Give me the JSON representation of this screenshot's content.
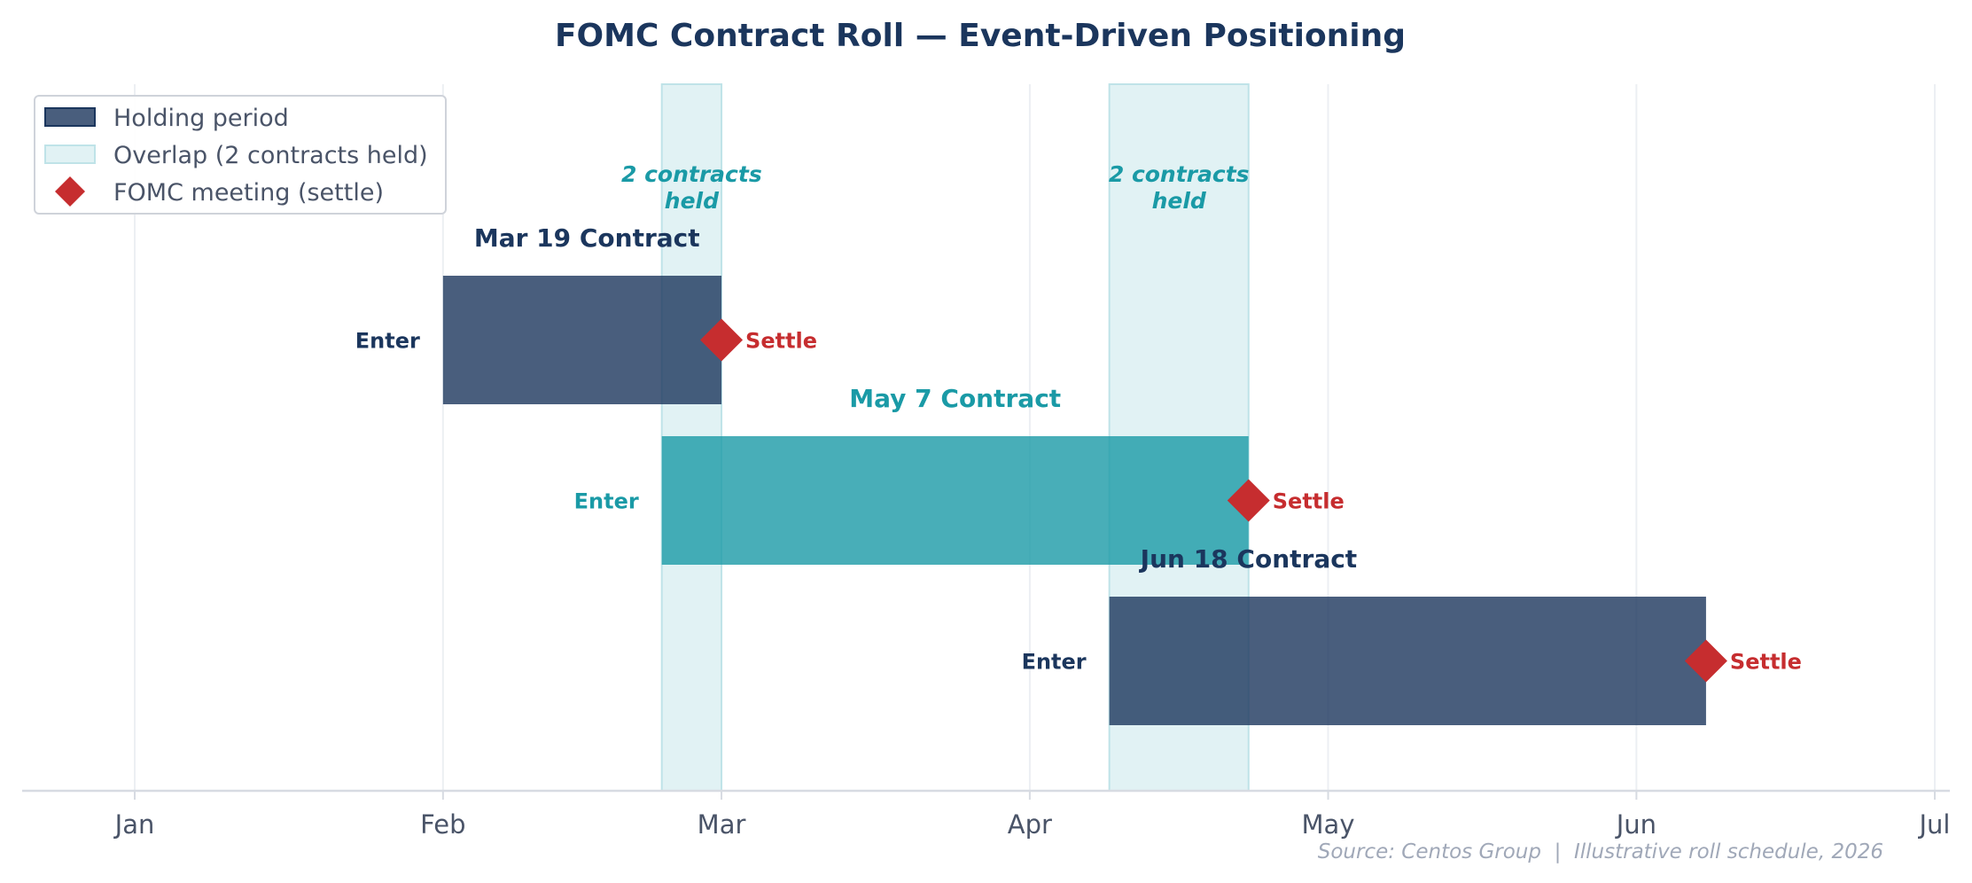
{
  "chart_data": {
    "type": "gantt",
    "title": "FOMC Contract Roll — Event-Driven Positioning",
    "x_axis": {
      "type": "date",
      "range": [
        "2026-01-01",
        "2026-07-01"
      ],
      "ticks": [
        {
          "date": "2026-01-01",
          "label": "Jan"
        },
        {
          "date": "2026-02-01",
          "label": "Feb"
        },
        {
          "date": "2026-03-01",
          "label": "Mar"
        },
        {
          "date": "2026-04-01",
          "label": "Apr"
        },
        {
          "date": "2026-05-01",
          "label": "May"
        },
        {
          "date": "2026-06-01",
          "label": "Jun"
        },
        {
          "date": "2026-07-01",
          "label": "Jul"
        }
      ],
      "grid": true
    },
    "bars": [
      {
        "title": "Mar 19 Contract",
        "enter_date": "2026-02-01",
        "settle_date": "2026-03-01",
        "color": "#1b365d",
        "label_color": "#1b365d",
        "enter_label": "Enter",
        "settle_label": "Settle"
      },
      {
        "title": "May 7 Contract",
        "enter_date": "2026-02-23",
        "settle_date": "2026-04-23",
        "color": "#1a9aa6",
        "label_color": "#1a9aa6",
        "enter_label": "Enter",
        "settle_label": "Settle"
      },
      {
        "title": "Jun 18 Contract",
        "enter_date": "2026-04-09",
        "settle_date": "2026-06-08",
        "color": "#1b365d",
        "label_color": "#1b365d",
        "enter_label": "Enter",
        "settle_label": "Settle"
      }
    ],
    "overlaps": [
      {
        "start": "2026-02-23",
        "end": "2026-03-01",
        "note": "2 contracts\nheld"
      },
      {
        "start": "2026-04-09",
        "end": "2026-04-23",
        "note": "2 contracts\nheld"
      }
    ],
    "legend": {
      "position": "top-left",
      "entries": [
        {
          "label": "Holding period",
          "kind": "bar"
        },
        {
          "label": "Overlap (2 contracts held)",
          "kind": "overlap"
        },
        {
          "label": "FOMC meeting (settle)",
          "kind": "diamond"
        }
      ]
    },
    "source": "Source: Centos Group  |  Illustrative roll schedule, 2026",
    "colors": {
      "title": "#1b365d",
      "navy": "#1b365d",
      "teal": "#1a9aa6",
      "overlap_fill": "#e1f2f4",
      "overlap_stroke": "#bfe3e8",
      "settle": "#c62d2f",
      "grid": "#eceff3",
      "axis": "#d7dbe2"
    }
  }
}
